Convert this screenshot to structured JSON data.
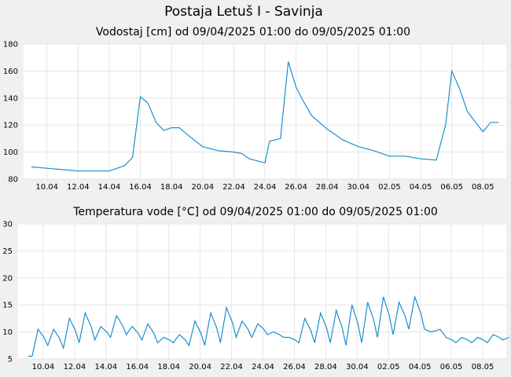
{
  "page_title": "Postaja Letuš I - Savinja",
  "colors": {
    "background": "#f0f0f0",
    "plot": "#ffffff",
    "grid": "#e6e6e6",
    "series": "#1a8fd0"
  },
  "chart_data": [
    {
      "type": "line",
      "title": "Vodostaj [cm] od 09/04/2025 01:00 do 09/05/2025 01:00",
      "x_range": [
        "2025-04-09",
        "2025-05-09"
      ],
      "ylim": [
        80,
        180
      ],
      "y_ticks": [
        "80",
        "100",
        "120",
        "140",
        "160",
        "180"
      ],
      "x_ticks": [
        "10.04",
        "12.04",
        "14.04",
        "16.04",
        "18.04",
        "20.04",
        "22.04",
        "24.04",
        "26.04",
        "28.04",
        "30.04",
        "02.05",
        "04.05",
        "06.05",
        "08.05"
      ],
      "grid": true,
      "points": [
        [
          "2025-04-09",
          89
        ],
        [
          "2025-04-10",
          88
        ],
        [
          "2025-04-11",
          87
        ],
        [
          "2025-04-12",
          86
        ],
        [
          "2025-04-13",
          86
        ],
        [
          "2025-04-14",
          86
        ],
        [
          "2025-04-15",
          90
        ],
        [
          "2025-04-15.5",
          96
        ],
        [
          "2025-04-16",
          141
        ],
        [
          "2025-04-16.5",
          136
        ],
        [
          "2025-04-17",
          122
        ],
        [
          "2025-04-17.5",
          116
        ],
        [
          "2025-04-18",
          118
        ],
        [
          "2025-04-18.5",
          118
        ],
        [
          "2025-04-19",
          113
        ],
        [
          "2025-04-20",
          104
        ],
        [
          "2025-04-21",
          101
        ],
        [
          "2025-04-22",
          100
        ],
        [
          "2025-04-22.5",
          99
        ],
        [
          "2025-04-23",
          95
        ],
        [
          "2025-04-24",
          92
        ],
        [
          "2025-04-24.3",
          108
        ],
        [
          "2025-04-25",
          110
        ],
        [
          "2025-04-25.5",
          167
        ],
        [
          "2025-04-26",
          148
        ],
        [
          "2025-04-26.5",
          137
        ],
        [
          "2025-04-27",
          127
        ],
        [
          "2025-04-28",
          117
        ],
        [
          "2025-04-29",
          109
        ],
        [
          "2025-04-30",
          104
        ],
        [
          "2025-05-01",
          101
        ],
        [
          "2025-05-02",
          97
        ],
        [
          "2025-05-03",
          97
        ],
        [
          "2025-05-04",
          95
        ],
        [
          "2025-05-05",
          94
        ],
        [
          "2025-05-05.6",
          120
        ],
        [
          "2025-05-06",
          160
        ],
        [
          "2025-05-06.5",
          147
        ],
        [
          "2025-05-07",
          130
        ],
        [
          "2025-05-08",
          115
        ],
        [
          "2025-05-08.5",
          122
        ],
        [
          "2025-05-09",
          122
        ]
      ]
    },
    {
      "type": "line",
      "title": "Temperatura vode [°C] od 09/04/2025 01:00 do 09/05/2025 01:00",
      "x_range": [
        "2025-04-09",
        "2025-05-09"
      ],
      "ylim": [
        5,
        30
      ],
      "y_ticks": [
        "5",
        "10",
        "15",
        "20",
        "25",
        "30"
      ],
      "x_ticks": [
        "10.04",
        "12.04",
        "14.04",
        "16.04",
        "18.04",
        "20.04",
        "22.04",
        "24.04",
        "26.04",
        "28.04",
        "30.04",
        "02.05",
        "04.05",
        "06.05",
        "08.05"
      ],
      "grid": true,
      "daily_min": [
        5.5,
        7.5,
        7.0,
        8.0,
        8.5,
        9.0,
        9.5,
        8.5,
        8.0,
        8.0,
        7.5,
        7.5,
        8.0,
        9.0,
        9.0,
        9.5,
        9.0,
        8.0,
        8.0,
        8.0,
        7.5,
        8.0,
        9.0,
        9.5,
        10.5,
        10.5,
        10.5,
        8.0,
        8.0,
        8.0,
        8.5
      ],
      "daily_max": [
        10.5,
        10.5,
        12.5,
        13.5,
        11.0,
        13.0,
        11.0,
        11.5,
        9.0,
        9.5,
        12.0,
        13.5,
        14.5,
        12.0,
        11.5,
        10.0,
        9.0,
        12.5,
        13.5,
        14.0,
        15.0,
        15.5,
        16.5,
        15.5,
        16.5,
        10.0,
        9.0,
        9.0,
        9.0,
        9.5,
        9.0
      ]
    }
  ]
}
